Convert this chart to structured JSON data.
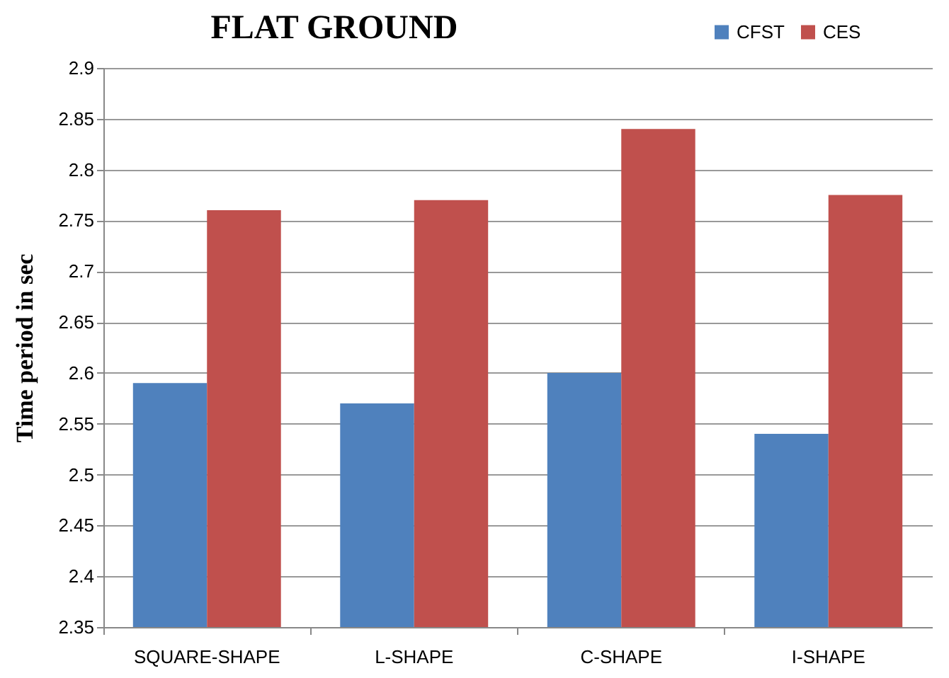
{
  "chart_data": {
    "type": "bar",
    "title": "FLAT GROUND",
    "ylabel": "Time period in sec",
    "categories": [
      "SQUARE-SHAPE",
      "L-SHAPE",
      "C-SHAPE",
      "I-SHAPE"
    ],
    "series": [
      {
        "name": "CFST",
        "color": "#4f81bd",
        "values": [
          2.59,
          2.57,
          2.6,
          2.54
        ]
      },
      {
        "name": "CES",
        "color": "#c0504d",
        "values": [
          2.76,
          2.77,
          2.84,
          2.775
        ]
      }
    ],
    "ylim": [
      2.35,
      2.9
    ],
    "yticks": [
      2.35,
      2.4,
      2.45,
      2.5,
      2.55,
      2.6,
      2.65,
      2.7,
      2.75,
      2.8,
      2.85,
      2.9
    ],
    "grid": "y",
    "legend": "top right"
  }
}
